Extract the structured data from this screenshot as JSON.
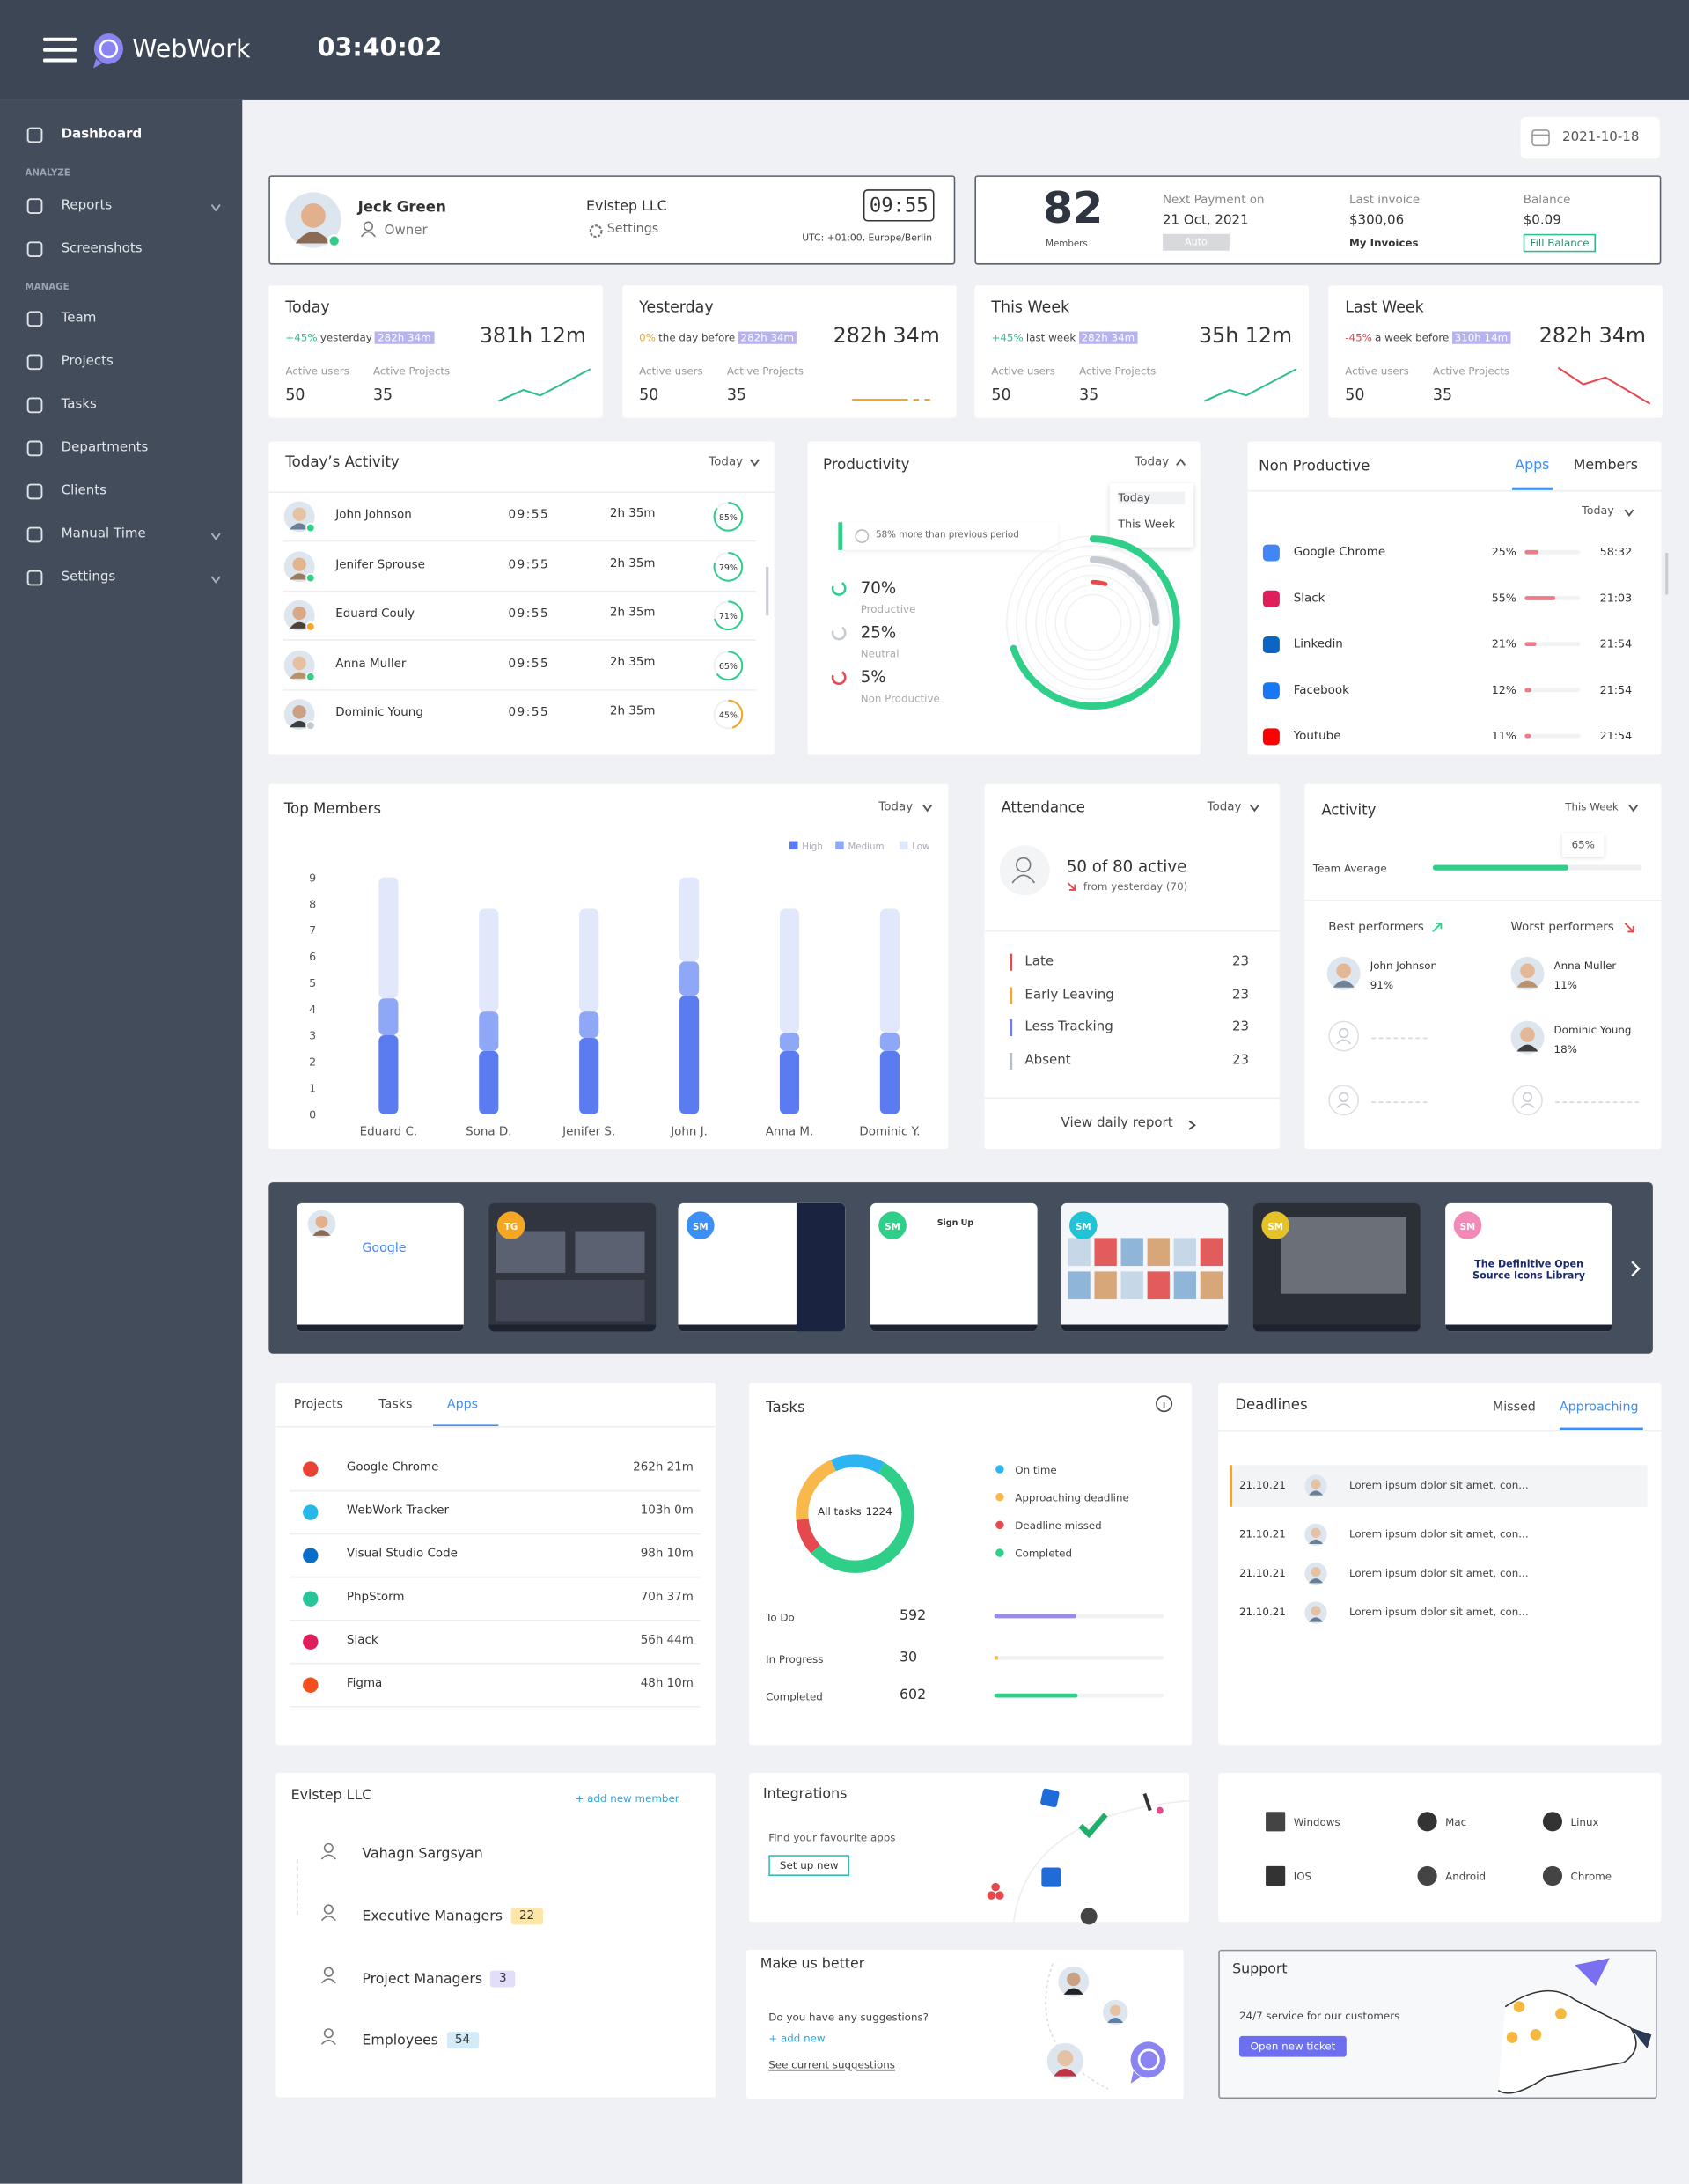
{
  "header": {
    "brand": "WebWork",
    "clock": "03:40:02"
  },
  "sidebar": {
    "dashboard": "Dashboard",
    "sections": [
      {
        "title": "ANALYZE",
        "items": [
          {
            "label": "Reports",
            "has_submenu": true
          },
          {
            "label": "Screenshots"
          }
        ]
      },
      {
        "title": "MANAGE",
        "items": [
          {
            "label": "Team"
          },
          {
            "label": "Projects"
          },
          {
            "label": "Tasks"
          },
          {
            "label": "Departments"
          },
          {
            "label": "Clients"
          },
          {
            "label": "Manual Time",
            "has_submenu": true
          },
          {
            "label": "Settings",
            "has_submenu": true
          }
        ]
      }
    ]
  },
  "date": "2021-10-18",
  "profile": {
    "name": "Jeck Green",
    "role": "Owner",
    "company": "Evistep LLC",
    "settings": "Settings",
    "timer": "09:55",
    "timezone": "UTC: +01:00, Europe/Berlin"
  },
  "billing": {
    "members_count": 82,
    "members_label": "Members",
    "next_payment_label": "Next Payment on",
    "next_payment": "21 Oct, 2021",
    "auto": "Auto",
    "last_invoice_label": "Last invoice",
    "last_invoice": "$300,06",
    "my_invoices": "My Invoices",
    "balance_label": "Balance",
    "balance": "$0.09",
    "fill_balance": "Fill Balance"
  },
  "stats": [
    {
      "title": "Today",
      "change": "+45%",
      "compare": "yesterday",
      "compare_value": "282h 34m",
      "total": "381h 12m",
      "active_users_label": "Active users",
      "active_users": 50,
      "active_projects_label": "Active Projects",
      "active_projects": 35,
      "color": "#2fbf8c"
    },
    {
      "title": "Yesterday",
      "change": "0%",
      "compare": "the day before",
      "compare_value": "282h 34m",
      "total": "282h 34m",
      "active_users_label": "Active users",
      "active_users": 50,
      "active_projects_label": "Active Projects",
      "active_projects": 35,
      "color": "#f5a623"
    },
    {
      "title": "This Week",
      "change": "+45%",
      "compare": "last week",
      "compare_value": "282h 34m",
      "total": "35h 12m",
      "active_users_label": "Active users",
      "active_users": 50,
      "active_projects_label": "Active Projects",
      "active_projects": 35,
      "color": "#2fbf8c"
    },
    {
      "title": "Last Week",
      "change": "-45%",
      "compare": "a week before",
      "compare_value": "310h 14m",
      "total": "282h 34m",
      "active_users_label": "Active users",
      "active_users": 50,
      "active_projects_label": "Active Projects",
      "active_projects": 35,
      "color": "#e5484d"
    }
  ],
  "todays_activity": {
    "title": "Today’s Activity",
    "filter": "Today",
    "rows": [
      {
        "name": "John Johnson",
        "time": "09:55",
        "duration": "2h 35m",
        "percent": {
          "value": 85,
          "label": "85%"
        },
        "color": "#2fcf8a"
      },
      {
        "name": "Jenifer Sprouse",
        "time": "09:55",
        "duration": "2h 35m",
        "percent": {
          "value": 79,
          "label": "79%"
        },
        "color": "#2fcf8a"
      },
      {
        "name": "Eduard Couly",
        "time": "09:55",
        "duration": "2h 35m",
        "percent": {
          "value": 71,
          "label": "71%"
        },
        "color": "#2fcf8a"
      },
      {
        "name": "Anna Muller",
        "time": "09:55",
        "duration": "2h 35m",
        "percent": {
          "value": 65,
          "label": "65%"
        },
        "color": "#2fcf8a"
      },
      {
        "name": "Dominic Young",
        "time": "09:55",
        "duration": "2h 35m",
        "percent": {
          "value": 45,
          "label": "45%"
        },
        "color": "#f5a623"
      }
    ]
  },
  "productivity": {
    "title": "Productivity",
    "filter": "Today",
    "options": [
      "Today",
      "This Week"
    ],
    "note": "58% more than previous period",
    "items": [
      {
        "value": 70,
        "label": "70%",
        "name": "Productive",
        "color": "#2fcf8a"
      },
      {
        "value": 25,
        "label": "25%",
        "name": "Neutral",
        "color": "#c5cbd0"
      },
      {
        "value": 5,
        "label": "5%",
        "name": "Non Productive",
        "color": "#e5484d"
      }
    ]
  },
  "non_productive": {
    "title": "Non Productive",
    "tabs": [
      "Apps",
      "Members"
    ],
    "filter": "Today",
    "rows": [
      {
        "app": "Google Chrome",
        "percent": {
          "value": 25,
          "label": "25%"
        },
        "time": "58:32",
        "color": "#4285f4"
      },
      {
        "app": "Slack",
        "percent": {
          "value": 55,
          "label": "55%"
        },
        "time": "21:03",
        "color": "#e01e5a"
      },
      {
        "app": "Linkedin",
        "percent": {
          "value": 21,
          "label": "21%"
        },
        "time": "21:54",
        "color": "#0a66c2"
      },
      {
        "app": "Facebook",
        "percent": {
          "value": 12,
          "label": "12%"
        },
        "time": "21:54",
        "color": "#1877f2"
      },
      {
        "app": "Youtube",
        "percent": {
          "value": 11,
          "label": "11%"
        },
        "time": "21:54",
        "color": "#ff0000"
      }
    ]
  },
  "top_members": {
    "title": "Top Members",
    "filter": "Today",
    "categories": [
      "Eduard C.",
      "Sona D.",
      "Jenifer S.",
      "John J.",
      "Anna M.",
      "Dominic Y."
    ],
    "ylim": [
      0,
      9
    ],
    "yticks": [
      0,
      1,
      2,
      3,
      4,
      5,
      6,
      7,
      8,
      9
    ],
    "series": [
      {
        "name": "High",
        "color": "#5b7cf0",
        "values": [
          3,
          2.4,
          2.9,
          4.5,
          2.4,
          2.4
        ]
      },
      {
        "name": "Medium",
        "color": "#8ea7f6",
        "values": [
          1.4,
          1.5,
          1,
          1.3,
          0.7,
          0.7
        ]
      },
      {
        "name": "Low",
        "color": "#e2e8fb",
        "values": [
          4.6,
          3.9,
          3.9,
          3.2,
          4.7,
          4.7
        ]
      }
    ]
  },
  "attendance": {
    "title": "Attendance",
    "filter": "Today",
    "active": "50 of 80 active",
    "from_yesterday": "from yesterday (70)",
    "rows": [
      {
        "label": "Late",
        "value": 23,
        "color": "#e5484d"
      },
      {
        "label": "Early Leaving",
        "value": 23,
        "color": "#f5a623"
      },
      {
        "label": "Less Tracking",
        "value": 23,
        "color": "#6b7bf0"
      },
      {
        "label": "Absent",
        "value": 23,
        "color": "#b8bec6"
      }
    ],
    "report": "View daily report"
  },
  "activity": {
    "title": "Activity",
    "filter": "This Week",
    "team_average_title": "Team Average",
    "team_average": {
      "value": 65,
      "label": "65%"
    },
    "best_title": "Best performers",
    "worst_title": "Worst performers",
    "best": [
      {
        "name": "John Johnson",
        "percent": "91%"
      }
    ],
    "worst": [
      {
        "name": "Anna Muller",
        "percent": "11%"
      },
      {
        "name": "Dominic Young",
        "percent": "18%"
      }
    ]
  },
  "screenshots": {
    "google": "Google",
    "badges": [
      {
        "text": "TG",
        "color": "#f5a623"
      },
      {
        "text": "SM",
        "color": "#3b8ff5"
      },
      {
        "text": "SM",
        "color": "#2fcf8a"
      },
      {
        "text": "SM",
        "color": "#22c3d6"
      },
      {
        "text": "SM",
        "color": "#e6c229"
      },
      {
        "text": "SM",
        "color": "#f28ab8"
      }
    ],
    "sign_up": "Sign Up",
    "last_title": "The Definitive Open Source Icons Library"
  },
  "apps": {
    "tabs": [
      "Projects",
      "Tasks",
      "Apps"
    ],
    "rows": [
      {
        "name": "Google Chrome",
        "time": "262h 21m",
        "color": "#ea4335"
      },
      {
        "name": "WebWork Tracker",
        "time": "103h 0m",
        "color": "#27b6e8"
      },
      {
        "name": "Visual Studio Code",
        "time": "98h 10m",
        "color": "#0a6ec9"
      },
      {
        "name": "PhpStorm",
        "time": "70h 37m",
        "color": "#29c59a"
      },
      {
        "name": "Slack",
        "time": "56h 44m",
        "color": "#e01e5a"
      },
      {
        "name": "Figma",
        "time": "48h 10m",
        "color": "#f24e1e"
      }
    ]
  },
  "tasks": {
    "title": "Tasks",
    "total_label": "All tasks",
    "total": 1224,
    "donut": [
      {
        "name": "On time",
        "color": "#2cb5f0",
        "value": 15
      },
      {
        "name": "Approaching deadline",
        "color": "#f9b84b",
        "value": 20
      },
      {
        "name": "Deadline missed",
        "color": "#e5484d",
        "value": 10
      },
      {
        "name": "Completed",
        "color": "#2fcf8a",
        "value": 55
      }
    ],
    "rows": [
      {
        "label": "To Do",
        "value": 592,
        "color": "#9b8be8"
      },
      {
        "label": "In Progress",
        "value": 30,
        "color": "#f5c04a"
      },
      {
        "label": "Completed",
        "value": 602,
        "color": "#2fcf8a"
      }
    ]
  },
  "deadlines": {
    "title": "Deadlines",
    "tabs": [
      "Missed",
      "Approaching"
    ],
    "rows": [
      {
        "date": "21.10.21",
        "text": "Lorem ipsum dolor sit amet, con..."
      },
      {
        "date": "21.10.21",
        "text": "Lorem ipsum dolor sit amet, con..."
      },
      {
        "date": "21.10.21",
        "text": "Lorem ipsum dolor sit amet, con..."
      },
      {
        "date": "21.10.21",
        "text": "Lorem ipsum dolor sit amet, con..."
      }
    ]
  },
  "team": {
    "company": "Evistep LLC",
    "add": "+ add new member",
    "owner": "Vahagn Sargsyan",
    "groups": [
      {
        "name": "Executive Managers",
        "count": 22,
        "color": "#fde6a8"
      },
      {
        "name": "Project Managers",
        "count": 3,
        "color": "#e2ddfb"
      },
      {
        "name": "Employees",
        "count": 54,
        "color": "#d3ebf7"
      }
    ]
  },
  "integrations": {
    "title": "Integrations",
    "text": "Find your favourite apps",
    "button": "Set up new"
  },
  "platforms": [
    "Windows",
    "Mac",
    "Linux",
    "IOS",
    "Android",
    "Chrome"
  ],
  "feedback": {
    "title": "Make us better",
    "question": "Do you have any suggestions?",
    "add": "+ add new",
    "link": "See current suggestions"
  },
  "support": {
    "title": "Support",
    "text": "24/7 service for our customers",
    "button": "Open new ticket"
  }
}
